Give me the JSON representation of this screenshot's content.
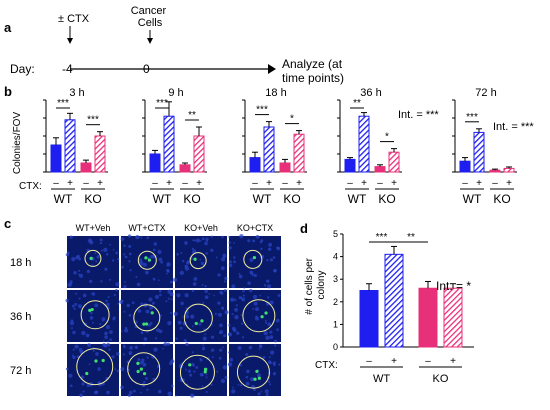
{
  "panel_labels": {
    "a": "a",
    "b": "b",
    "c": "c",
    "d": "d"
  },
  "panel_a": {
    "day_label": "Day:",
    "day_ticks": [
      "-4",
      "0"
    ],
    "event_labels": [
      "± CTX",
      "Cancer\nCells"
    ],
    "end_label": "Analyze (at\ntime points)"
  },
  "panel_b": {
    "ylabel": "Colonies/FOV",
    "ctx_label": "CTX:",
    "ctx_signs": [
      "–",
      "+",
      "–",
      "+"
    ],
    "group_labels": [
      "WT",
      "KO"
    ]
  },
  "panel_c": {
    "columns": [
      "WT+Veh",
      "WT+CTX",
      "KO+Veh",
      "KO+CTX"
    ],
    "rows": [
      "18 h",
      "36 h",
      "72 h"
    ]
  },
  "colors": {
    "wt": "#1e1ef0",
    "ko": "#e8307a",
    "micrograph_bg": "#0a1a6a",
    "colony_green": "#40e070"
  },
  "chart_data": [
    {
      "type": "bar",
      "title": "3 h",
      "ylim": [
        0,
        20
      ],
      "yticks": [
        0,
        5,
        10,
        15,
        20
      ],
      "categories": [
        "WT –",
        "WT +",
        "KO –",
        "KO +"
      ],
      "values": [
        7.5,
        14.5,
        2.5,
        10
      ],
      "errors": [
        2,
        1.8,
        0.8,
        1.2
      ],
      "stars": [
        {
          "from": 0,
          "to": 1,
          "label": "***"
        },
        {
          "from": 2,
          "to": 3,
          "label": "***"
        }
      ]
    },
    {
      "type": "bar",
      "title": "9 h",
      "ylim": [
        0,
        20
      ],
      "yticks": [
        0,
        5,
        10,
        15,
        20
      ],
      "categories": [
        "WT –",
        "WT +",
        "KO –",
        "KO +"
      ],
      "values": [
        5,
        15.5,
        2,
        10
      ],
      "errors": [
        1,
        4,
        0.5,
        2.5
      ],
      "stars": [
        {
          "from": 0,
          "to": 1,
          "label": "***"
        },
        {
          "from": 2,
          "to": 3,
          "label": "**"
        }
      ]
    },
    {
      "type": "bar",
      "title": "18 h",
      "ylim": [
        0,
        20
      ],
      "yticks": [
        0,
        5,
        10,
        15,
        20
      ],
      "categories": [
        "WT –",
        "WT +",
        "KO –",
        "KO +"
      ],
      "values": [
        4,
        12.5,
        2.5,
        10.5
      ],
      "errors": [
        1.5,
        1.5,
        1,
        1
      ],
      "stars": [
        {
          "from": 0,
          "to": 1,
          "label": "***"
        },
        {
          "from": 2,
          "to": 3,
          "label": "*"
        }
      ]
    },
    {
      "type": "bar",
      "title": "36 h",
      "ylim": [
        0,
        20
      ],
      "yticks": [
        0,
        5,
        10,
        15,
        20
      ],
      "categories": [
        "WT –",
        "WT +",
        "KO –",
        "KO +"
      ],
      "values": [
        3.5,
        15.5,
        1.5,
        5.5
      ],
      "errors": [
        0.5,
        1,
        0.5,
        1
      ],
      "stars": [
        {
          "from": 0,
          "to": 1,
          "label": "**"
        },
        {
          "from": 2,
          "to": 3,
          "label": "*"
        }
      ],
      "interaction": "Int. = ***"
    },
    {
      "type": "bar",
      "title": "72 h",
      "ylim": [
        0,
        20
      ],
      "yticks": [
        0,
        5,
        10,
        15,
        20
      ],
      "categories": [
        "WT –",
        "WT +",
        "KO –",
        "KO +"
      ],
      "values": [
        3,
        11,
        0.5,
        1
      ],
      "errors": [
        1,
        1,
        0.3,
        0.4
      ],
      "stars": [
        {
          "from": 0,
          "to": 1,
          "label": "***"
        }
      ],
      "interaction": "Int. = ***"
    },
    {
      "type": "bar",
      "title": "",
      "ylabel": "# of cells per\ncolony",
      "ylim": [
        0,
        5
      ],
      "yticks": [
        0,
        1,
        2,
        3,
        4,
        5
      ],
      "categories": [
        "WT –",
        "WT +",
        "KO –",
        "KO +"
      ],
      "values": [
        2.5,
        4.1,
        2.6,
        2.6
      ],
      "errors": [
        0.3,
        0.35,
        0.3,
        0.2
      ],
      "stars": [
        {
          "from": 0,
          "to": 1,
          "label": "***"
        },
        {
          "from": 1,
          "to": 2,
          "label": "**"
        }
      ],
      "interaction": "Int. = *"
    }
  ]
}
